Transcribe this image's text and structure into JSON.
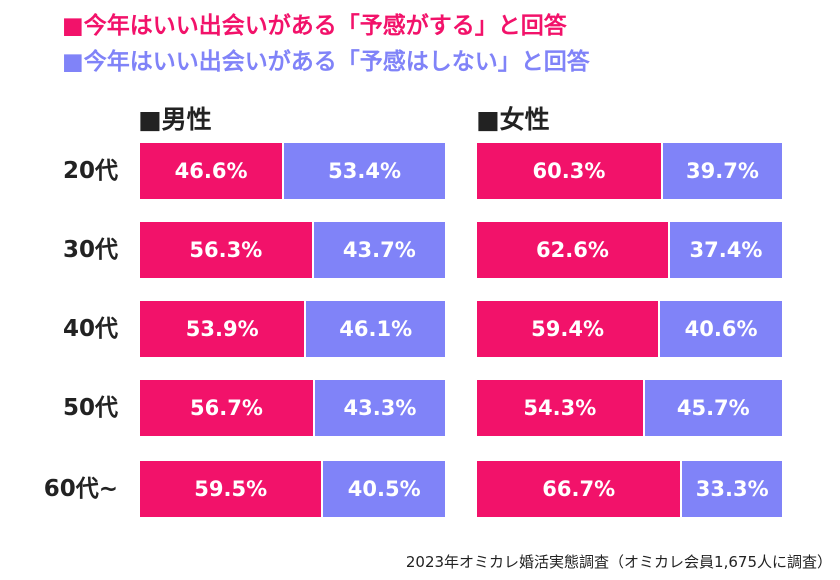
{
  "legend": [
    {
      "label": "■今年はいい出会いがある「予感がする」と回答",
      "color": "#f2126a"
    },
    {
      "label": "■今年はいい出会いがある「予感はしない」と回答",
      "color": "#8083f8"
    }
  ],
  "source": "2023年オミカレ婚活実態調査（オミカレ会員1,675人に調査）",
  "chart_data": [
    {
      "type": "bar",
      "title": "■男性",
      "categories": [
        "20代",
        "30代",
        "40代",
        "50代",
        "60代~"
      ],
      "series": [
        {
          "name": "今年はいい出会いがある「予感がする」と回答",
          "values": [
            46.6,
            56.3,
            53.9,
            56.7,
            59.5
          ],
          "labels": [
            "46.6%",
            "56.3%",
            "53.9%",
            "56.7%",
            "59.5%"
          ],
          "color": "#f2126a"
        },
        {
          "name": "今年はいい出会いがある「予感はしない」と回答",
          "values": [
            53.4,
            43.7,
            46.1,
            43.3,
            40.5
          ],
          "labels": [
            "53.4%",
            "43.7%",
            "46.1%",
            "43.3%",
            "40.5%"
          ],
          "color": "#8083f8"
        }
      ],
      "stacked": true,
      "orientation": "horizontal",
      "xlim": [
        0,
        100
      ]
    },
    {
      "type": "bar",
      "title": "■女性",
      "categories": [
        "20代",
        "30代",
        "40代",
        "50代",
        "60代~"
      ],
      "series": [
        {
          "name": "今年はいい出会いがある「予感がする」と回答",
          "values": [
            60.3,
            62.6,
            59.4,
            54.3,
            66.7
          ],
          "labels": [
            "60.3%",
            "62.6%",
            "59.4%",
            "54.3%",
            "66.7%"
          ],
          "color": "#f2126a"
        },
        {
          "name": "今年はいい出会いがある「予感はしない」と回答",
          "values": [
            39.7,
            37.4,
            40.6,
            45.7,
            33.3
          ],
          "labels": [
            "39.7%",
            "37.4%",
            "40.6%",
            "45.7%",
            "33.3%"
          ],
          "color": "#8083f8"
        }
      ],
      "stacked": true,
      "orientation": "horizontal",
      "xlim": [
        0,
        100
      ]
    }
  ]
}
